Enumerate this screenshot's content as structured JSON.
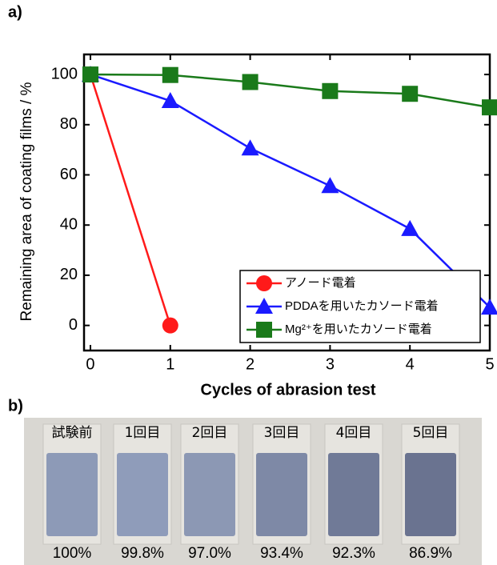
{
  "chart_data": {
    "type": "line",
    "panel_label": "a)",
    "xlabel": "Cycles of abrasion test",
    "ylabel": "Remaining area of coating films / %",
    "xlim": [
      -0.08,
      5
    ],
    "ylim": [
      -10,
      108
    ],
    "xticks": [
      0,
      1,
      2,
      3,
      4,
      5
    ],
    "yticks": [
      0,
      20,
      40,
      60,
      80,
      100
    ],
    "legend": "lower right",
    "series": [
      {
        "name": "アノード電着",
        "color": "#ff1a1a",
        "marker": "circle",
        "x": [
          0,
          1
        ],
        "values": [
          100,
          0
        ]
      },
      {
        "name": "PDDAを用いたカソード電着",
        "color": "#1a1aff",
        "marker": "triangle",
        "x": [
          0,
          1,
          2,
          3,
          4,
          5
        ],
        "values": [
          100,
          89.5,
          70.6,
          55.6,
          38.5,
          7.2
        ]
      },
      {
        "name": "Mg²⁺を用いたカソード電着",
        "color": "#1a7a1a",
        "marker": "square",
        "x": [
          0,
          1,
          2,
          3,
          4,
          5
        ],
        "values": [
          100,
          99.8,
          97.0,
          93.4,
          92.3,
          86.9
        ]
      }
    ]
  },
  "photo": {
    "panel_label": "b)",
    "labels": [
      "試験前",
      "1回目",
      "2回目",
      "3回目",
      "4回目",
      "5回目"
    ],
    "percentages": [
      "100%",
      "99.8%",
      "97.0%",
      "93.4%",
      "92.3%",
      "86.9%"
    ]
  }
}
